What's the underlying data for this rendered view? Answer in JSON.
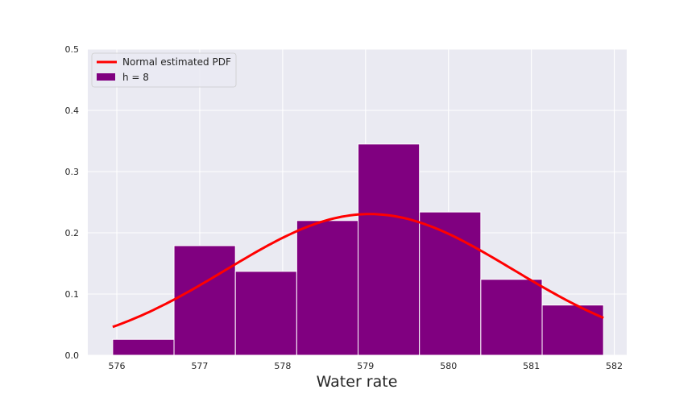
{
  "chart_data": {
    "type": "bar",
    "xlabel": "Water rate",
    "ylabel": "",
    "xlim": [
      575.65,
      582.15
    ],
    "ylim": [
      0.0,
      0.5
    ],
    "x_ticks": [
      576,
      577,
      578,
      579,
      580,
      581,
      582
    ],
    "y_ticks": [
      0.0,
      0.1,
      0.2,
      0.3,
      0.4,
      0.5
    ],
    "grid": true,
    "legend_position": "top-left",
    "histogram": {
      "name": "h = 8",
      "color": "#800080",
      "bin_edges": [
        575.95,
        576.69,
        577.43,
        578.17,
        578.91,
        579.65,
        580.39,
        581.13,
        581.87
      ],
      "densities": [
        0.026,
        0.179,
        0.137,
        0.22,
        0.345,
        0.234,
        0.124,
        0.082
      ]
    },
    "pdf_curve": {
      "name": "Normal estimated PDF",
      "color": "#ff0000",
      "distribution": "normal",
      "mean": 579.05,
      "std": 1.73,
      "x_range": [
        575.95,
        581.87
      ]
    }
  }
}
